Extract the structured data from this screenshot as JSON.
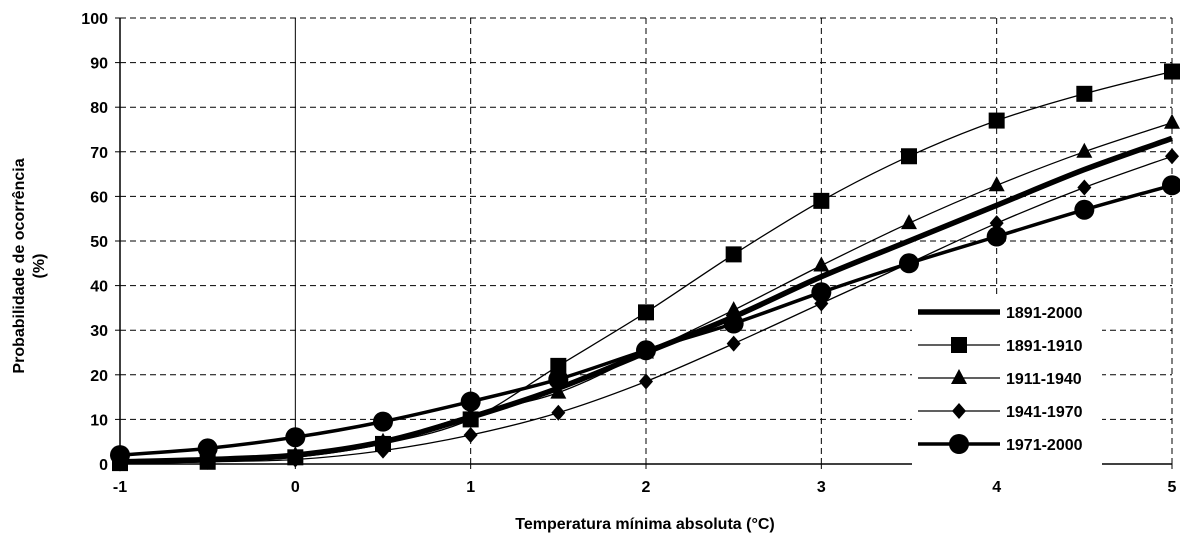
{
  "chart_data": {
    "type": "line",
    "title": "",
    "xlabel": "Temperatura mínima absoluta (°C)",
    "ylabel": [
      "Probabilidade de ocorrência",
      "(%)"
    ],
    "xlim": [
      -1,
      5
    ],
    "ylim": [
      0,
      100
    ],
    "x_ticks": [
      "-1",
      "0",
      "1",
      "2",
      "3",
      "4",
      "5"
    ],
    "y_ticks": [
      "0",
      "10",
      "20",
      "30",
      "40",
      "50",
      "60",
      "70",
      "80",
      "90",
      "100"
    ],
    "grid": true,
    "legend_position": "right",
    "x": [
      -1,
      -0.5,
      0,
      0.5,
      1,
      1.5,
      2,
      2.5,
      3,
      3.5,
      4,
      4.5,
      5
    ],
    "series": [
      {
        "name": "1891-2000",
        "marker": "none",
        "values": [
          0.5,
          1,
          2,
          5,
          10.5,
          17,
          25,
          33,
          42,
          50,
          58,
          66,
          73
        ]
      },
      {
        "name": "1891-1910",
        "marker": "square",
        "values": [
          0.2,
          0.5,
          1.5,
          4.5,
          10,
          22,
          34,
          47,
          59,
          69,
          77,
          83,
          88
        ]
      },
      {
        "name": "1911-1940",
        "marker": "triangle",
        "values": [
          0.5,
          1,
          2,
          5,
          11,
          16,
          25,
          34.5,
          44.5,
          54,
          62.5,
          70,
          76.5
        ]
      },
      {
        "name": "1941-1970",
        "marker": "diamond",
        "values": [
          0.1,
          0.5,
          1,
          3,
          6.5,
          11.5,
          18.5,
          27,
          36,
          45,
          54,
          62,
          69
        ]
      },
      {
        "name": "1971-2000",
        "marker": "circle",
        "values": [
          2,
          3.5,
          6,
          9.5,
          14,
          19,
          25.5,
          31.5,
          38.5,
          45,
          51,
          57,
          62.5
        ]
      }
    ]
  }
}
